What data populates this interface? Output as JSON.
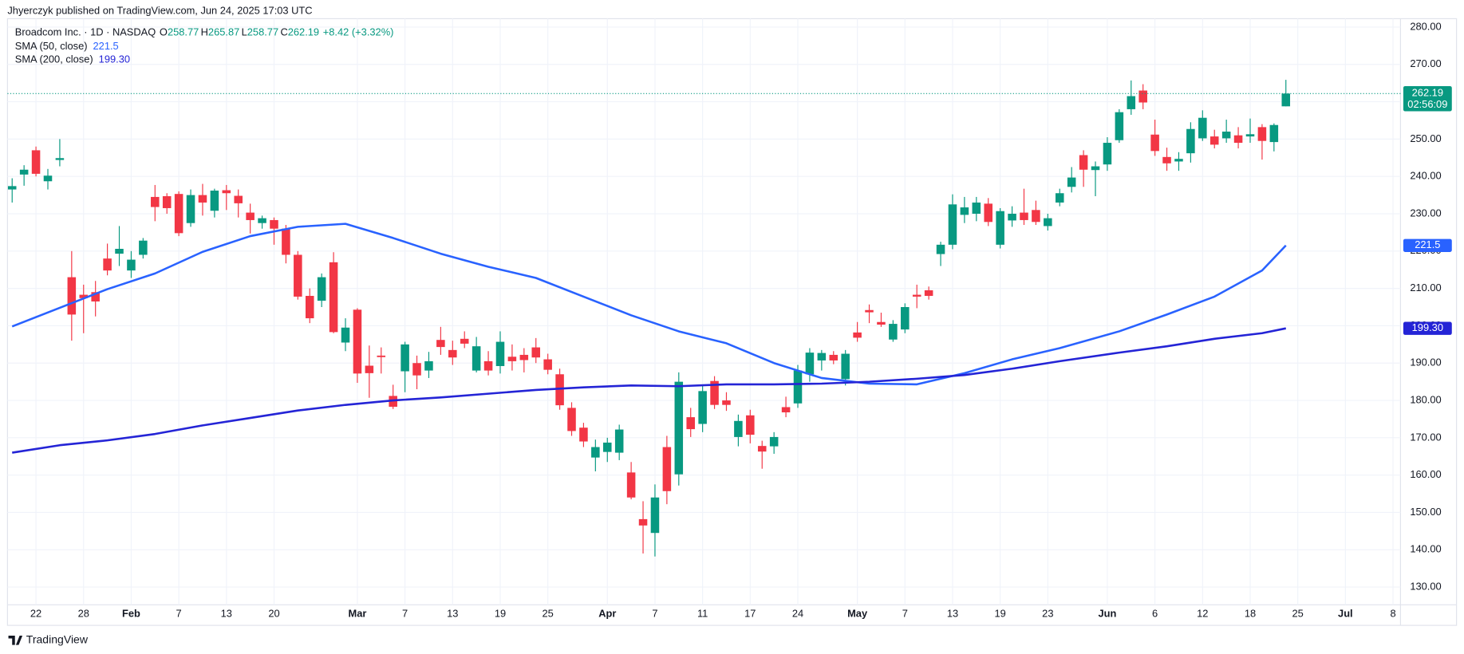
{
  "header": {
    "publisher": "Jhyerczyk published on TradingView.com, Jun 24, 2025 17:03 UTC"
  },
  "footer": {
    "brand": "TradingView"
  },
  "chart_data": {
    "type": "candlestick",
    "symbol": "Broadcom Inc. · 1D · NASDAQ",
    "ohlc_letters": [
      "O",
      "H",
      "L",
      "C"
    ],
    "change": "+8.42 (+3.32%)",
    "last_price_countdown": "02:56:09",
    "up_color": "#089981",
    "down_color": "#f23645",
    "grid": true,
    "dates": [
      "2025-01-17",
      "2025-01-21",
      "2025-01-22",
      "2025-01-23",
      "2025-01-24",
      "2025-01-27",
      "2025-01-28",
      "2025-01-29",
      "2025-01-30",
      "2025-01-31",
      "2025-02-03",
      "2025-02-04",
      "2025-02-05",
      "2025-02-06",
      "2025-02-07",
      "2025-02-10",
      "2025-02-11",
      "2025-02-12",
      "2025-02-13",
      "2025-02-14",
      "2025-02-18",
      "2025-02-19",
      "2025-02-20",
      "2025-02-21",
      "2025-02-24",
      "2025-02-25",
      "2025-02-26",
      "2025-02-27",
      "2025-02-28",
      "2025-03-03",
      "2025-03-04",
      "2025-03-05",
      "2025-03-06",
      "2025-03-07",
      "2025-03-10",
      "2025-03-11",
      "2025-03-12",
      "2025-03-13",
      "2025-03-14",
      "2025-03-17",
      "2025-03-18",
      "2025-03-19",
      "2025-03-20",
      "2025-03-21",
      "2025-03-24",
      "2025-03-25",
      "2025-03-26",
      "2025-03-27",
      "2025-03-28",
      "2025-03-31",
      "2025-04-01",
      "2025-04-02",
      "2025-04-03",
      "2025-04-04",
      "2025-04-07",
      "2025-04-08",
      "2025-04-09",
      "2025-04-10",
      "2025-04-11",
      "2025-04-14",
      "2025-04-15",
      "2025-04-16",
      "2025-04-17",
      "2025-04-21",
      "2025-04-22",
      "2025-04-23",
      "2025-04-24",
      "2025-04-25",
      "2025-04-28",
      "2025-04-29",
      "2025-04-30",
      "2025-05-01",
      "2025-05-02",
      "2025-05-05",
      "2025-05-06",
      "2025-05-07",
      "2025-05-08",
      "2025-05-09",
      "2025-05-12",
      "2025-05-13",
      "2025-05-14",
      "2025-05-15",
      "2025-05-16",
      "2025-05-19",
      "2025-05-20",
      "2025-05-21",
      "2025-05-22",
      "2025-05-23",
      "2025-05-27",
      "2025-05-28",
      "2025-05-29",
      "2025-05-30",
      "2025-06-02",
      "2025-06-03",
      "2025-06-04",
      "2025-06-05",
      "2025-06-06",
      "2025-06-09",
      "2025-06-10",
      "2025-06-11",
      "2025-06-12",
      "2025-06-13",
      "2025-06-16",
      "2025-06-17",
      "2025-06-18",
      "2025-06-20",
      "2025-06-23",
      "2025-06-24",
      "2025-06-25",
      "2025-06-26",
      "2025-06-27",
      "2025-06-30",
      "2025-07-01",
      "2025-07-02",
      "2025-07-03",
      "2025-07-07",
      "2025-07-08",
      "2025-07-09"
    ],
    "open": [
      236.5,
      240.5,
      247,
      238.7,
      244.4,
      213,
      208.3,
      209,
      218,
      219.3,
      214.8,
      219,
      234.5,
      234.7,
      235.3,
      227.5,
      235,
      230.8,
      236.3,
      234.8,
      230.3,
      227.5,
      228.3,
      226,
      219,
      208,
      206.7,
      217,
      195.5,
      204.3,
      189.3,
      192,
      181.2,
      187.8,
      190,
      188,
      196.2,
      193.5,
      196.5,
      188,
      190.5,
      189.2,
      191.7,
      192.2,
      194.2,
      191,
      187,
      178,
      172.7,
      164.7,
      166.2,
      166,
      160.7,
      148.2,
      144.5,
      167.5,
      160.2,
      175.5,
      173.7,
      185.2,
      180,
      170.2,
      176,
      167.8,
      167.7,
      178.2,
      179.2,
      187,
      190.7,
      192.2,
      185.7,
      198.2,
      204.2,
      201,
      196.3,
      199,
      208.3,
      209.5,
      219.2,
      221.7,
      229.7,
      230,
      232.7,
      221.7,
      228.2,
      230.3,
      231,
      226.7,
      233,
      237.2,
      245.7,
      241.7,
      243.2,
      249.7,
      258,
      263,
      251.2,
      245.2,
      244,
      246.2,
      250.2,
      250.7,
      250.2,
      251,
      250.7,
      253.2,
      249.2,
      258.77,
      null,
      null,
      null,
      null,
      null,
      null,
      null,
      null,
      null,
      null
    ],
    "high": [
      239.5,
      243,
      248,
      242,
      250,
      220,
      211,
      212,
      222,
      226.7,
      220,
      223.5,
      237.7,
      235.5,
      236,
      236.5,
      238,
      236.7,
      237.7,
      236.5,
      232.7,
      229.5,
      229,
      227,
      220,
      210,
      214,
      219.7,
      202,
      204.7,
      194.7,
      194.2,
      184.2,
      195.7,
      192,
      193,
      199.7,
      196,
      198.5,
      197,
      193.2,
      198.5,
      195,
      194,
      196.7,
      192.5,
      188.5,
      179.5,
      174,
      169.5,
      170,
      173.5,
      163.5,
      153,
      157.5,
      170.5,
      187.5,
      178,
      184.2,
      186.5,
      182.2,
      176.2,
      177.5,
      169.2,
      171.5,
      181,
      189.5,
      194,
      193.5,
      193.2,
      193.5,
      201,
      205.7,
      203.5,
      201.5,
      206,
      211,
      210.5,
      222.5,
      235.2,
      234.5,
      234.5,
      234.2,
      231.5,
      232,
      236.7,
      233.5,
      230,
      236.7,
      242.5,
      247,
      244,
      250.5,
      258,
      265.7,
      264.7,
      255.2,
      247.7,
      246.5,
      254.5,
      257.7,
      252.5,
      255.2,
      253.2,
      255.5,
      254,
      254.2,
      265.87,
      null,
      null,
      null,
      null,
      null,
      null,
      null,
      null,
      null,
      null
    ],
    "low": [
      233,
      237.5,
      240,
      236.5,
      242.7,
      196,
      198,
      202.5,
      213.5,
      216,
      212.8,
      218,
      228,
      230,
      224,
      226.5,
      229.5,
      229,
      231,
      229,
      224.7,
      226,
      221.7,
      216.7,
      207,
      200.7,
      205,
      198,
      193.2,
      184.7,
      180.7,
      187.2,
      177.7,
      182.2,
      183,
      186,
      192.2,
      189.5,
      194,
      187.5,
      186.7,
      187.2,
      188,
      187.5,
      190,
      187,
      177.5,
      170.5,
      167.5,
      161,
      163.5,
      164,
      153.5,
      139,
      138.2,
      152.2,
      157.2,
      170.2,
      171.5,
      177.7,
      177.2,
      167.7,
      168.5,
      161.7,
      165.7,
      175.5,
      178,
      185,
      188,
      189.7,
      184,
      195.7,
      200.7,
      199.7,
      195.7,
      198,
      204.7,
      207,
      216,
      220.5,
      227.5,
      228,
      226.7,
      220.7,
      226.5,
      227,
      227,
      225.5,
      232,
      235.7,
      237.2,
      234.7,
      241.5,
      249,
      256.5,
      258,
      245.5,
      241.5,
      241.5,
      243.7,
      249.5,
      247.5,
      249,
      247.5,
      249,
      244.5,
      246.7,
      258.77,
      null,
      null,
      null,
      null,
      null,
      null,
      null,
      null,
      null,
      null
    ],
    "close": [
      237.4,
      241.8,
      240.7,
      240.2,
      244.9,
      203,
      207.4,
      206.5,
      214.8,
      220.6,
      217.7,
      222.8,
      231.8,
      231.5,
      224.8,
      235,
      233,
      236.2,
      235.5,
      232.8,
      228.3,
      228.8,
      226,
      219,
      207.8,
      202,
      213,
      198.3,
      199.5,
      187.2,
      187.3,
      191.6,
      178.3,
      195,
      186.7,
      190.5,
      194.3,
      191.5,
      195.2,
      194.5,
      188,
      195.7,
      190.5,
      190.8,
      191.5,
      188.2,
      178.7,
      171.8,
      169,
      167.5,
      168.7,
      172.2,
      154,
      146.5,
      154,
      155.7,
      185,
      172.3,
      182.5,
      178.8,
      178.8,
      174.5,
      170.8,
      166.3,
      170.2,
      176.8,
      188,
      192.8,
      192.7,
      190.7,
      192.5,
      196.8,
      203.6,
      200.3,
      200.5,
      205,
      207.8,
      208,
      221.7,
      232.5,
      231.7,
      233,
      227.8,
      230.7,
      230,
      228.3,
      227.8,
      228.8,
      235.5,
      239.7,
      241.8,
      242.7,
      249,
      257.2,
      261.5,
      259.8,
      246.8,
      243.5,
      244.7,
      252.7,
      255.7,
      248.5,
      252,
      249,
      251.3,
      249.5,
      253.77,
      262.19,
      null,
      null,
      null,
      null,
      null,
      null,
      null,
      null,
      null,
      null
    ],
    "series": [
      {
        "name": "SMA (50, close)",
        "color": "#2962ff",
        "x": [
          "2025-01-17",
          "2025-01-24",
          "2025-01-30",
          "2025-02-05",
          "2025-02-11",
          "2025-02-18",
          "2025-02-24",
          "2025-02-28",
          "2025-03-06",
          "2025-03-12",
          "2025-03-18",
          "2025-03-24",
          "2025-03-28",
          "2025-04-03",
          "2025-04-09",
          "2025-04-15",
          "2025-04-22",
          "2025-04-28",
          "2025-05-02",
          "2025-05-08",
          "2025-05-14",
          "2025-05-20",
          "2025-05-27",
          "2025-06-03",
          "2025-06-09",
          "2025-06-13",
          "2025-06-20",
          "2025-06-24"
        ],
        "values": [
          199.8,
          204.8,
          209.8,
          214,
          219.8,
          224,
          226.5,
          227.3,
          223.5,
          219.3,
          215.8,
          212.8,
          207.8,
          202.8,
          198.5,
          195.3,
          190,
          186,
          184.5,
          184.3,
          187.3,
          191,
          194,
          198.5,
          203,
          207.8,
          214.8,
          221.5
        ]
      },
      {
        "name": "SMA (200, close)",
        "color": "#2424d6",
        "x": [
          "2025-01-17",
          "2025-01-24",
          "2025-01-30",
          "2025-02-05",
          "2025-02-11",
          "2025-02-18",
          "2025-02-24",
          "2025-02-28",
          "2025-03-06",
          "2025-03-12",
          "2025-03-18",
          "2025-03-24",
          "2025-03-28",
          "2025-04-03",
          "2025-04-09",
          "2025-04-15",
          "2025-04-22",
          "2025-04-28",
          "2025-05-02",
          "2025-05-08",
          "2025-05-14",
          "2025-05-20",
          "2025-05-27",
          "2025-06-03",
          "2025-06-09",
          "2025-06-13",
          "2025-06-20",
          "2025-06-24"
        ],
        "values": [
          166,
          168,
          169.3,
          171,
          173.3,
          175.3,
          177.3,
          178.8,
          180,
          180.8,
          181.8,
          182.8,
          183.5,
          184,
          183.8,
          184.3,
          184.3,
          184.5,
          185,
          185.8,
          186.8,
          188.5,
          190.5,
          192.8,
          194.5,
          196.5,
          198,
          199.3
        ],
        "value_labels": [
          null,
          null,
          null,
          null,
          null,
          null,
          null,
          null,
          null,
          null,
          null,
          null,
          null,
          null,
          null,
          null,
          null,
          null,
          null,
          null,
          null,
          null,
          null,
          null,
          null,
          null,
          null,
          "199.30"
        ]
      }
    ],
    "ylim": [
      125.25,
      285.25
    ],
    "yticks": [
      {
        "value": 130,
        "label": "130.00"
      },
      {
        "value": 140,
        "label": "140.00"
      },
      {
        "value": 150,
        "label": "150.00"
      },
      {
        "value": 160,
        "label": "160.00"
      },
      {
        "value": 170,
        "label": "170.00"
      },
      {
        "value": 180,
        "label": "180.00"
      },
      {
        "value": 190,
        "label": "190.00"
      },
      {
        "value": 200,
        "label": "200.00"
      },
      {
        "value": 210,
        "label": "210.00"
      },
      {
        "value": 220,
        "label": "220.00"
      },
      {
        "value": 230,
        "label": "230.00"
      },
      {
        "value": 240,
        "label": "240.00"
      },
      {
        "value": 250,
        "label": "250.00"
      },
      {
        "value": 260,
        "label": "260.00"
      },
      {
        "value": 270,
        "label": "270.00"
      },
      {
        "value": 280,
        "label": "280.00"
      }
    ],
    "xticks": [
      {
        "value": "2025-01-22",
        "label": "22"
      },
      {
        "value": "2025-01-28",
        "label": "28"
      },
      {
        "value": "2025-02-03",
        "label": "Feb"
      },
      {
        "value": "2025-02-07",
        "label": "7"
      },
      {
        "value": "2025-02-13",
        "label": "13"
      },
      {
        "value": "2025-02-20",
        "label": "20"
      },
      {
        "value": "2025-03-03",
        "label": "Mar"
      },
      {
        "value": "2025-03-07",
        "label": "7"
      },
      {
        "value": "2025-03-13",
        "label": "13"
      },
      {
        "value": "2025-03-19",
        "label": "19"
      },
      {
        "value": "2025-03-25",
        "label": "25"
      },
      {
        "value": "2025-04-01",
        "label": "Apr"
      },
      {
        "value": "2025-04-07",
        "label": "7"
      },
      {
        "value": "2025-04-11",
        "label": "11"
      },
      {
        "value": "2025-04-17",
        "label": "17"
      },
      {
        "value": "2025-04-24",
        "label": "24"
      },
      {
        "value": "2025-05-01",
        "label": "May"
      },
      {
        "value": "2025-05-07",
        "label": "7"
      },
      {
        "value": "2025-05-13",
        "label": "13"
      },
      {
        "value": "2025-05-19",
        "label": "19"
      },
      {
        "value": "2025-05-23",
        "label": "23"
      },
      {
        "value": "2025-06-02",
        "label": "Jun"
      },
      {
        "value": "2025-06-06",
        "label": "6"
      },
      {
        "value": "2025-06-12",
        "label": "12"
      },
      {
        "value": "2025-06-18",
        "label": "18"
      },
      {
        "value": "2025-06-25",
        "label": "25"
      },
      {
        "value": "2025-07-01",
        "label": "Jul"
      },
      {
        "value": "2025-07-08",
        "label": "8"
      }
    ]
  }
}
